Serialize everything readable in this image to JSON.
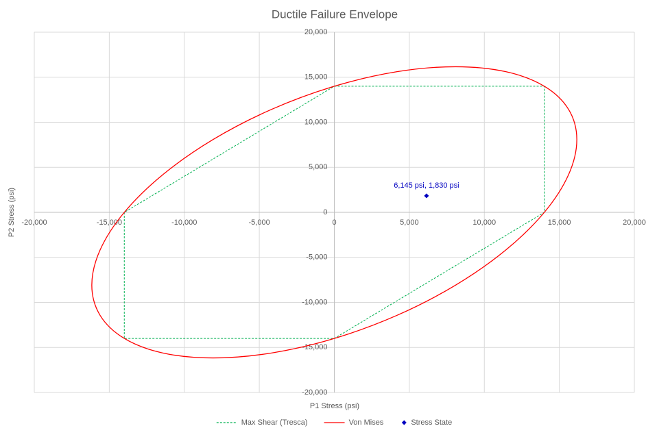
{
  "chart_data": {
    "type": "scatter",
    "title": "Ductile Failure Envelope",
    "x_label": "P1 Stress (psi)",
    "y_label": "P2 Stress (psi)",
    "xlim": [
      -20000,
      20000
    ],
    "ylim": [
      -20000,
      20000
    ],
    "xticks": [
      {
        "value": -20000,
        "label": "-20,000"
      },
      {
        "value": -15000,
        "label": "-15,000"
      },
      {
        "value": -10000,
        "label": "-10,000"
      },
      {
        "value": -5000,
        "label": "-5,000"
      },
      0,
      {
        "value": 5000,
        "label": "5,000"
      },
      {
        "value": 10000,
        "label": "10,000"
      },
      {
        "value": 15000,
        "label": "15,000"
      },
      {
        "value": 20000,
        "label": "20,000"
      }
    ],
    "yticks": [
      {
        "value": -20000,
        "label": "-20,000"
      },
      {
        "value": -15000,
        "label": "-15,000"
      },
      {
        "value": -10000,
        "label": "-10,000"
      },
      {
        "value": -5000,
        "label": "-5,000"
      },
      0,
      {
        "value": 5000,
        "label": "5,000"
      },
      {
        "value": 10000,
        "label": "10,000"
      },
      {
        "value": 15000,
        "label": "15,000"
      },
      {
        "value": 20000,
        "label": "20,000"
      }
    ],
    "grid": true,
    "legend": "bottom",
    "series": [
      {
        "name": "Max Shear (Tresca)",
        "color": "#00b050",
        "mode": "dashed",
        "x": [
          0,
          14000,
          14000,
          0,
          -14000,
          -14000,
          0
        ],
        "values": [
          14000,
          14000,
          0,
          -14000,
          -14000,
          0,
          14000
        ]
      },
      {
        "name": "Von Mises",
        "color": "#ff0000",
        "mode": "smooth",
        "x": [
          14000,
          15615,
          16166,
          15615,
          14000,
          11431,
          8083,
          4184,
          0,
          -4184,
          -8083,
          -11431,
          -14000,
          -15615,
          -16166,
          -15615,
          -14000,
          -11431,
          -8083,
          -4184,
          0,
          4184,
          8083,
          11431,
          14000
        ],
        "values": [
          14000,
          11431,
          8083,
          4184,
          0,
          -4184,
          -8083,
          -11431,
          -14000,
          -15615,
          -16166,
          -15615,
          -14000,
          -11431,
          -8083,
          -4184,
          0,
          4184,
          8083,
          11431,
          14000,
          15615,
          16166,
          15615,
          14000
        ]
      },
      {
        "name": "Stress State",
        "color": "#0000c0",
        "mode": "markers",
        "x": [
          6145
        ],
        "values": [
          1830
        ],
        "value_labels": [
          "6,145 psi, 1,830 psi"
        ]
      }
    ]
  }
}
